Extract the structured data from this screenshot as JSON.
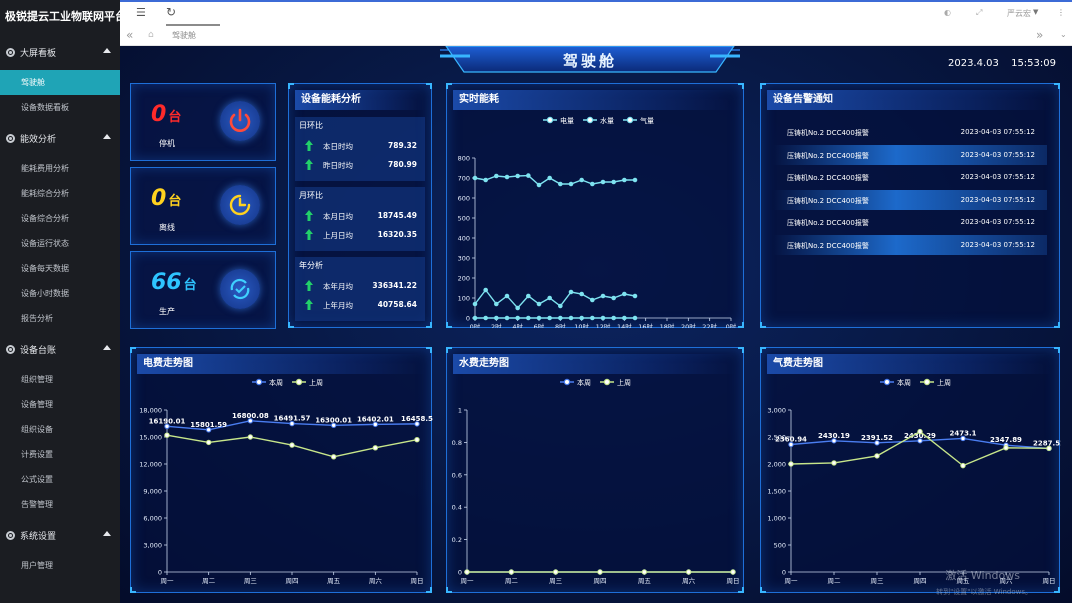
{
  "brand": "极锐提云工业物联网平台",
  "sidebar": [
    {
      "label": "大屏看板",
      "items": [
        {
          "label": "驾驶舱",
          "active": true
        },
        {
          "label": "设备数据看板"
        }
      ]
    },
    {
      "label": "能效分析",
      "items": [
        {
          "label": "能耗费用分析"
        },
        {
          "label": "能耗综合分析"
        },
        {
          "label": "设备综合分析"
        },
        {
          "label": "设备运行状态"
        },
        {
          "label": "设备每天数据"
        },
        {
          "label": "设备小时数据"
        },
        {
          "label": "报告分析"
        }
      ]
    },
    {
      "label": "设备台账",
      "items": [
        {
          "label": "组织管理"
        },
        {
          "label": "设备管理"
        },
        {
          "label": "组织设备"
        },
        {
          "label": "计费设置"
        },
        {
          "label": "公式设置"
        },
        {
          "label": "告警管理"
        }
      ]
    },
    {
      "label": "系统设置",
      "items": [
        {
          "label": "用户管理"
        }
      ]
    }
  ],
  "topbar": {
    "user": "严云宏",
    "tab": "驾驶舱"
  },
  "dashboard": {
    "title": "驾驶舱",
    "date": "2023.4.03",
    "time": "15:53:09"
  },
  "status": [
    {
      "value": "0",
      "unit": "台",
      "label": "停机",
      "color": "#ff2a2a"
    },
    {
      "value": "0",
      "unit": "台",
      "label": "离线",
      "color": "#ffd21f"
    },
    {
      "value": "66",
      "unit": "台",
      "label": "生产",
      "color": "#2ec4ff"
    }
  ],
  "energy": {
    "title": "设备能耗分析",
    "groups": [
      {
        "head": "日环比",
        "rows": [
          {
            "k": "本日时均",
            "v": "789.32"
          },
          {
            "k": "昨日时均",
            "v": "780.99"
          }
        ]
      },
      {
        "head": "月环比",
        "rows": [
          {
            "k": "本月日均",
            "v": "18745.49"
          },
          {
            "k": "上月日均",
            "v": "16320.35"
          }
        ]
      },
      {
        "head": "年分析",
        "rows": [
          {
            "k": "本年月均",
            "v": "336341.22"
          },
          {
            "k": "上年月均",
            "v": "40758.64"
          }
        ]
      }
    ]
  },
  "alerts": {
    "title": "设备告警通知",
    "items": [
      {
        "name": "压铸机No.2 DCC400报警",
        "time": "2023-04-03 07:55:12",
        "hl": false
      },
      {
        "name": "压铸机No.2 DCC400报警",
        "time": "2023-04-03 07:55:12",
        "hl": true
      },
      {
        "name": "压铸机No.2 DCC400报警",
        "time": "2023-04-03 07:55:12",
        "hl": false
      },
      {
        "name": "压铸机No.2 DCC400报警",
        "time": "2023-04-03 07:55:12",
        "hl": true
      },
      {
        "name": "压铸机No.2 DCC400报警",
        "time": "2023-04-03 07:55:12",
        "hl": false
      },
      {
        "name": "压铸机No.2 DCC400报警",
        "time": "2023-04-03 07:55:12",
        "hl": true
      }
    ]
  },
  "watermark": {
    "line1": "激活 Windows",
    "line2": "转到\"设置\"以激活 Windows。"
  },
  "chart_data": [
    {
      "type": "line",
      "title": "实时能耗",
      "categories": [
        "0时",
        "2时",
        "4时",
        "6时",
        "8时",
        "10时",
        "12时",
        "14时",
        "16时",
        "18时",
        "20时",
        "22时",
        "0时"
      ],
      "x": [
        0,
        1,
        2,
        3,
        4,
        5,
        6,
        7,
        8,
        9,
        10,
        11,
        12,
        13,
        14,
        15
      ],
      "x_hours": [
        0,
        1,
        2,
        3,
        4,
        5,
        6,
        7,
        8,
        9,
        10,
        11,
        12,
        13,
        14,
        15
      ],
      "ylim": [
        0,
        800
      ],
      "yticks": [
        0,
        100,
        200,
        300,
        400,
        500,
        600,
        700,
        800
      ],
      "series": [
        {
          "name": "电量",
          "color": "#7ee3f0",
          "values": [
            700,
            690,
            710,
            705,
            710,
            712,
            665,
            700,
            670,
            670,
            690,
            670,
            680,
            680,
            690,
            690
          ]
        },
        {
          "name": "水量",
          "color": "#7ee3f0",
          "values": [
            70,
            140,
            70,
            110,
            50,
            110,
            70,
            100,
            60,
            130,
            120,
            90,
            110,
            100,
            120,
            110
          ]
        },
        {
          "name": "气量",
          "color": "#7ee3f0",
          "values": [
            0,
            0,
            0,
            0,
            0,
            0,
            0,
            0,
            0,
            0,
            0,
            0,
            0,
            0,
            0,
            0
          ]
        }
      ],
      "legend": "top-center"
    },
    {
      "type": "line",
      "title": "电费走势图",
      "categories": [
        "周一",
        "周二",
        "周三",
        "周四",
        "周五",
        "周六",
        "周日"
      ],
      "ylim": [
        0,
        18000
      ],
      "yticks": [
        "0",
        "3,000",
        "6,000",
        "9,000",
        "12,000",
        "15,000",
        "18,000"
      ],
      "series": [
        {
          "name": "本周",
          "color": "#4a7df0",
          "values": [
            16190.01,
            15801.59,
            16800.08,
            16491.57,
            16300.01,
            16402.01,
            16458.5
          ],
          "labels": [
            "16190.01",
            "15801.59",
            "16800.08",
            "16491.57",
            "16300.01",
            "16402.01",
            "16458.5"
          ]
        },
        {
          "name": "上周",
          "color": "#c7e68a",
          "values": [
            15200,
            14400,
            15000,
            14100,
            12800,
            13800,
            14700
          ]
        }
      ],
      "legend": "top-center"
    },
    {
      "type": "line",
      "title": "水费走势图",
      "categories": [
        "周一",
        "周二",
        "周三",
        "周四",
        "周五",
        "周六",
        "周日"
      ],
      "ylim": [
        0,
        1
      ],
      "yticks": [
        "0",
        "0.2",
        "0.4",
        "0.6",
        "0.8",
        "1"
      ],
      "series": [
        {
          "name": "本周",
          "color": "#4a7df0",
          "values": [
            0,
            0,
            0,
            0,
            0,
            0,
            0
          ]
        },
        {
          "name": "上周",
          "color": "#c7e68a",
          "values": [
            0,
            0,
            0,
            0,
            0,
            0,
            0
          ]
        }
      ],
      "legend": "top-center"
    },
    {
      "type": "line",
      "title": "气费走势图",
      "categories": [
        "周一",
        "周二",
        "周三",
        "周四",
        "周五",
        "周六",
        "周日"
      ],
      "ylim": [
        0,
        3000
      ],
      "yticks": [
        "0",
        "500",
        "1,000",
        "1,500",
        "2,000",
        "2,500",
        "3,000"
      ],
      "series": [
        {
          "name": "本周",
          "color": "#4a7df0",
          "values": [
            2360.94,
            2430.19,
            2391.52,
            2430.29,
            2473.1,
            2347.89,
            2287.51
          ],
          "labels": [
            "2360.94",
            "2430.19",
            "2391.52",
            "2430.29",
            "2473.1",
            "2347.89",
            "2287.51"
          ]
        },
        {
          "name": "上周",
          "color": "#c7e68a",
          "values": [
            2000,
            2020,
            2150,
            2600,
            1970,
            2300,
            2290
          ]
        }
      ],
      "legend": "top-center"
    }
  ]
}
